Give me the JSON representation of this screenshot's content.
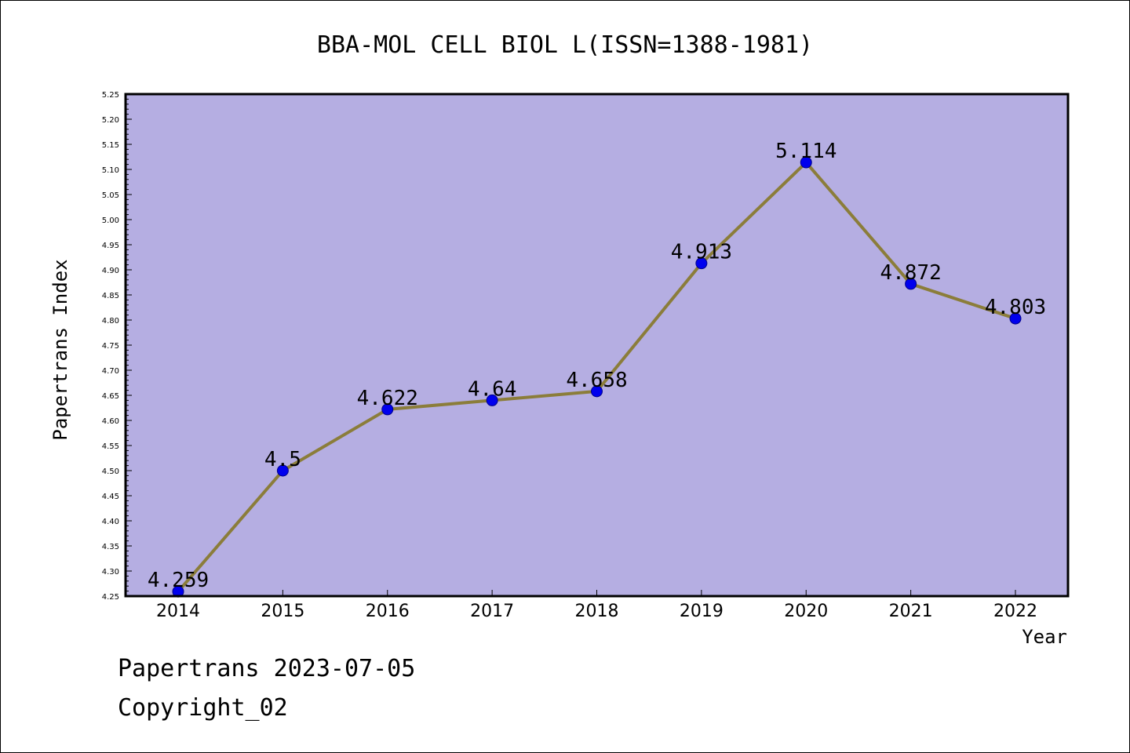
{
  "chart_data": {
    "type": "line",
    "title": "BBA-MOL CELL BIOL L(ISSN=1388-1981)",
    "xlabel": "Year",
    "ylabel": "Papertrans Index",
    "categories": [
      "2014",
      "2015",
      "2016",
      "2017",
      "2018",
      "2019",
      "2020",
      "2021",
      "2022"
    ],
    "values": [
      4.259,
      4.5,
      4.622,
      4.64,
      4.658,
      4.913,
      5.114,
      4.872,
      4.803
    ],
    "data_labels": [
      "4.259",
      "4.5",
      "4.622",
      "4.64",
      "4.658",
      "4.913",
      "5.114",
      "4.872",
      "4.803"
    ],
    "ylim": [
      4.25,
      5.25
    ],
    "yticks": [
      "4.25",
      "4.30",
      "4.35",
      "4.40",
      "4.45",
      "4.50",
      "4.55",
      "4.60",
      "4.65",
      "4.70",
      "4.75",
      "4.80",
      "4.85",
      "4.90",
      "4.95",
      "5.00",
      "5.05",
      "5.10",
      "5.15",
      "5.20",
      "5.25"
    ],
    "grid": false,
    "legend": "none",
    "colors": {
      "plot_background": "#b5aee2",
      "line": "#8b7d3a",
      "marker": "#0000ee",
      "axis": "#000000"
    }
  },
  "footer": {
    "line1": "Papertrans 2023-07-05",
    "line2": "Copyright_02"
  }
}
